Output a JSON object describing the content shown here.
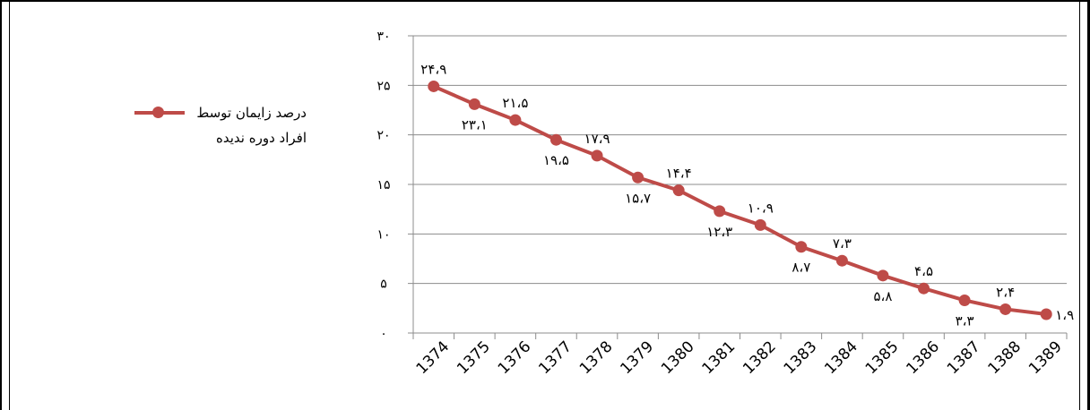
{
  "chart_data": {
    "type": "line",
    "title": "",
    "xlabel": "",
    "ylabel": "",
    "x": [
      "1374",
      "1375",
      "1376",
      "1377",
      "1378",
      "1379",
      "1380",
      "1381",
      "1382",
      "1383",
      "1384",
      "1385",
      "1386",
      "1387",
      "1388",
      "1389"
    ],
    "y_tick_labels": [
      "۰",
      "۵",
      "۱۰",
      "۱۵",
      "۲۰",
      "۲۵",
      "۳۰"
    ],
    "ylim": [
      0,
      30
    ],
    "grid": true,
    "legend_position": "left",
    "series": [
      {
        "name": "درصد زایمان توسط افراد دوره ندیده",
        "color": "#be4b48",
        "values": [
          24.9,
          23.1,
          21.5,
          19.5,
          17.9,
          15.7,
          14.4,
          12.3,
          10.9,
          8.7,
          7.3,
          5.8,
          4.5,
          3.3,
          2.4,
          1.9
        ],
        "data_labels": [
          "۲۴،۹",
          "۲۳،۱",
          "۲۱،۵",
          "۱۹،۵",
          "۱۷،۹",
          "۱۵،۷",
          "۱۴،۴",
          "۱۲،۳",
          "۱۰،۹",
          "۸،۷",
          "۷،۳",
          "۵،۸",
          "۴،۵",
          "۳،۳",
          "۲،۴",
          "۱،۹"
        ]
      }
    ]
  }
}
